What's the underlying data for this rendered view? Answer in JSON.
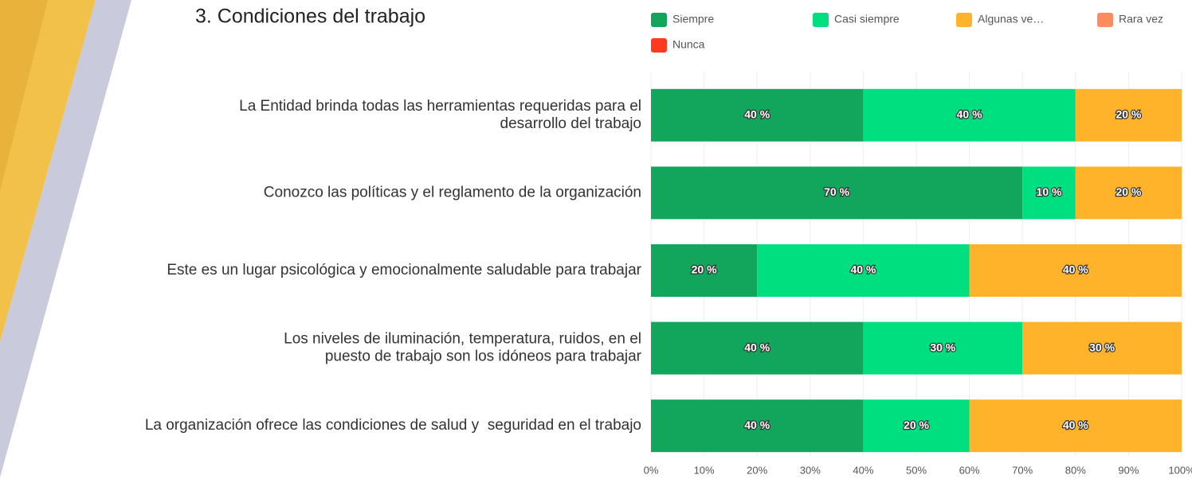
{
  "chart_data": {
    "type": "stacked-bar-horizontal",
    "title": "3. Condiciones del trabajo",
    "categories": [
      [
        "La Entidad brinda todas las herramientas requeridas para el",
        "desarrollo del trabajo"
      ],
      [
        "Conozco las políticas y el reglamento de la organización"
      ],
      [
        "Este es un lugar psicológica y emocionalmente saludable para trabajar"
      ],
      [
        "Los niveles de iluminación, temperatura, ruidos, en el",
        "puesto de trabajo son los idóneos para trabajar"
      ],
      [
        "La organización ofrece las condiciones de salud y  seguridad en el trabajo"
      ]
    ],
    "series": [
      {
        "name": "Siempre",
        "color": "#12a55c",
        "values": [
          40,
          70,
          20,
          40,
          40
        ],
        "value_labels": [
          "40 %",
          "70 %",
          "20 %",
          "40 %",
          "40 %"
        ]
      },
      {
        "name": "Casi siempre",
        "color": "#00df80",
        "values": [
          40,
          10,
          40,
          30,
          20
        ],
        "value_labels": [
          "40 %",
          "10 %",
          "40 %",
          "30 %",
          "20 %"
        ]
      },
      {
        "name": "Algunas ve…",
        "color": "#ffb32a",
        "values": [
          20,
          20,
          40,
          30,
          40
        ],
        "value_labels": [
          "20 %",
          "20 %",
          "40 %",
          "30 %",
          "40 %"
        ]
      },
      {
        "name": "Rara vez",
        "color": "#ff8c5e",
        "values": [
          0,
          0,
          0,
          0,
          0
        ]
      },
      {
        "name": "Nunca",
        "color": "#ff3a1e",
        "values": [
          0,
          0,
          0,
          0,
          0
        ]
      }
    ],
    "xlim": [
      0,
      100
    ],
    "xticks": [
      {
        "value": 0,
        "label": "0%"
      },
      {
        "value": 10,
        "label": "10%"
      },
      {
        "value": 20,
        "label": "20%"
      },
      {
        "value": 30,
        "label": "30%"
      },
      {
        "value": 40,
        "label": "40%"
      },
      {
        "value": 50,
        "label": "50%"
      },
      {
        "value": 60,
        "label": "60%"
      },
      {
        "value": 70,
        "label": "70%"
      },
      {
        "value": 80,
        "label": "80%"
      },
      {
        "value": 90,
        "label": "90%"
      },
      {
        "value": 100,
        "label": "100%"
      }
    ],
    "grid": true,
    "legend": "top"
  }
}
